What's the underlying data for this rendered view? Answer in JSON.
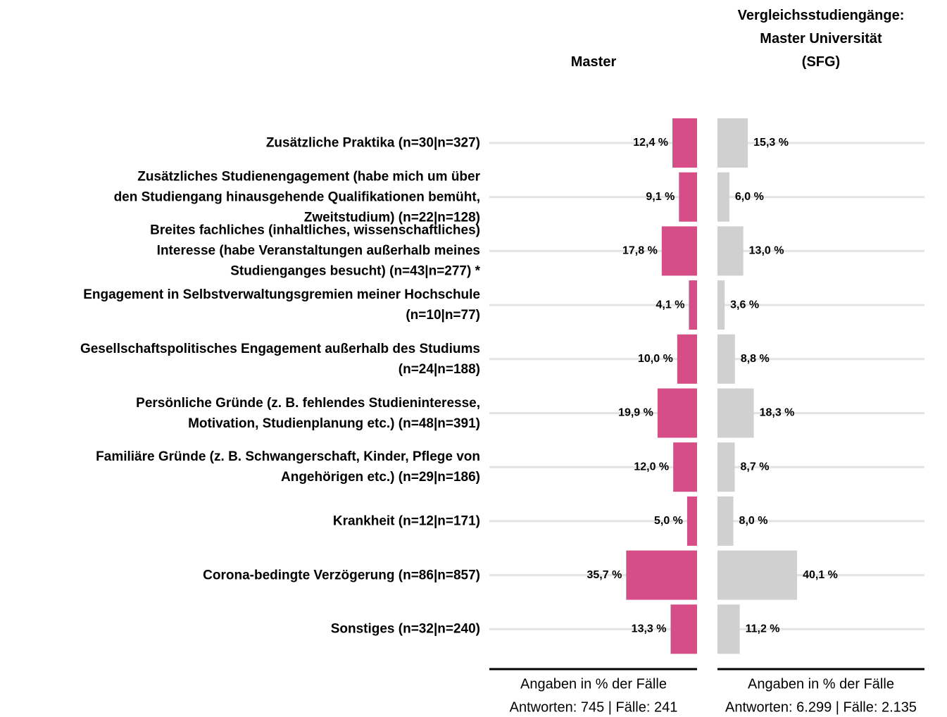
{
  "chart_data": {
    "type": "bar",
    "orientation": "horizontal",
    "categories": [
      "Zusätzliche Praktika (n=30|n=327)",
      "Zusätzliches Studienengagement (habe mich um über\nden Studiengang hinausgehende Qualifikationen bemüht,\nZweitstudium) (n=22|n=128)",
      "Breites fachliches (inhaltliches, wissenschaftliches)\nInteresse (habe Veranstaltungen außerhalb meines\nStudienganges besucht) (n=43|n=277) *",
      "Engagement in Selbstverwaltungsgremien meiner Hochschule\n(n=10|n=77)",
      "Gesellschaftspolitisches Engagement außerhalb des Studiums\n(n=24|n=188)",
      "Persönliche Gründe (z. B. fehlendes Studieninteresse,\nMotivation, Studienplanung etc.) (n=48|n=391)",
      "Familiäre Gründe (z. B. Schwangerschaft, Kinder, Pflege von\nAngehörigen etc.) (n=29|n=186)",
      "Krankheit (n=12|n=171)",
      "Corona-bedingte Verzögerung (n=86|n=857)",
      "Sonstiges (n=32|n=240)"
    ],
    "series": [
      {
        "name": "Master",
        "color": "#d64d87",
        "values": [
          12.4,
          9.1,
          17.8,
          4.1,
          10.0,
          19.9,
          12.0,
          5.0,
          35.7,
          13.3
        ],
        "value_labels": [
          "12,4 %",
          "9,1 %",
          "17,8 %",
          "4,1 %",
          "10,0 %",
          "19,9 %",
          "12,0 %",
          "5,0 %",
          "35,7 %",
          "13,3 %"
        ],
        "notes": [
          "Angaben in % der Fälle",
          "Antworten: 745 | Fälle: 241"
        ]
      },
      {
        "name": "Vergleichsstudiengänge:\nMaster Universität\n(SFG)",
        "color": "#d0d0d0",
        "values": [
          15.3,
          6.0,
          13.0,
          3.6,
          8.8,
          18.3,
          8.7,
          8.0,
          40.1,
          11.2
        ],
        "value_labels": [
          "15,3 %",
          "6,0 %",
          "13,0 %",
          "3,6 %",
          "8,8 %",
          "18,3 %",
          "8,7 %",
          "8,0 %",
          "40,1 %",
          "11,2 %"
        ],
        "notes": [
          "Angaben in % der Fälle",
          "Antworten: 6.299 | Fälle: 2.135"
        ]
      }
    ]
  }
}
